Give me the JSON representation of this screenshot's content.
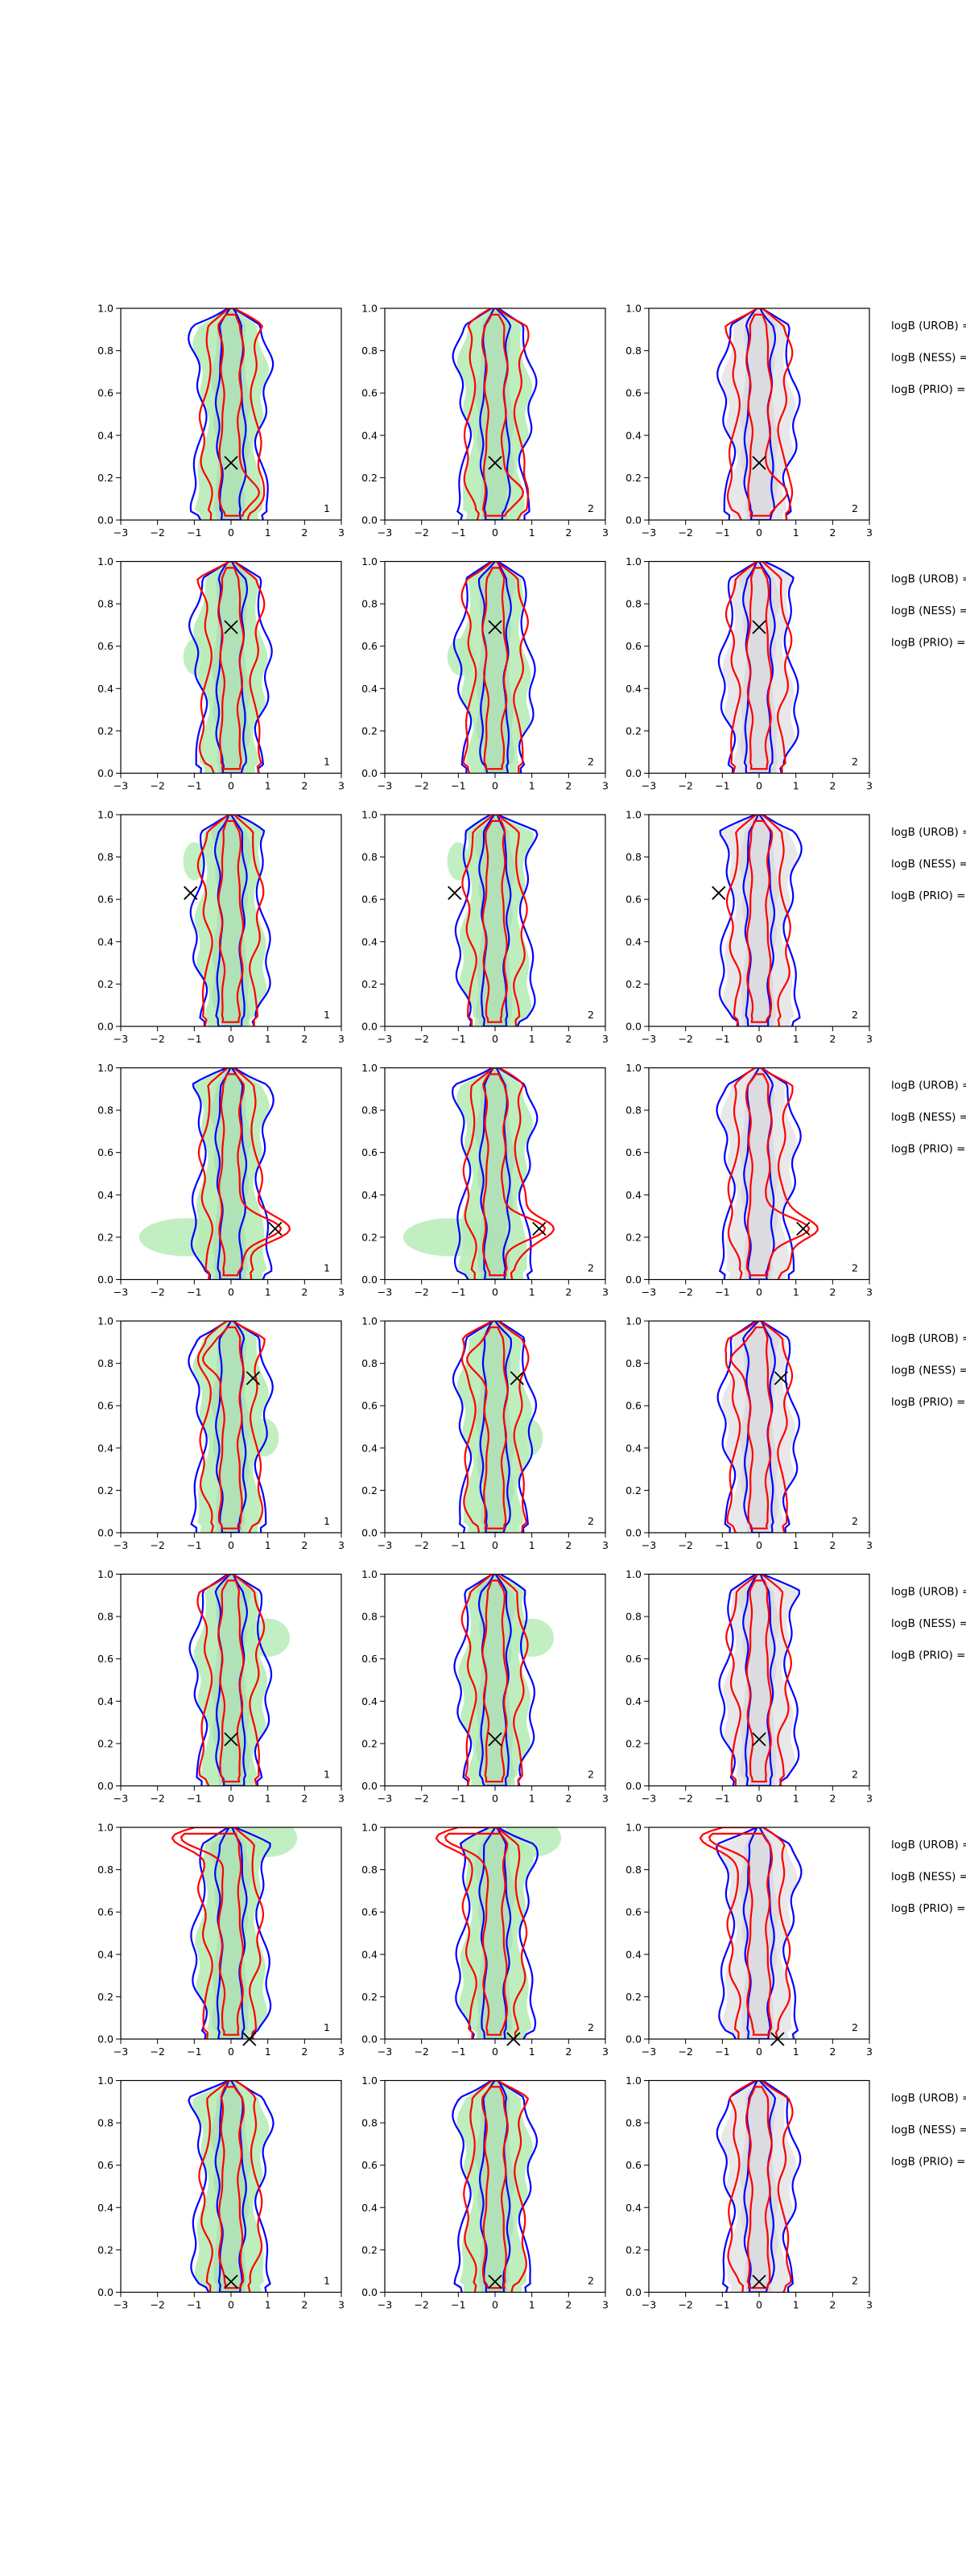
{
  "chart_data": {
    "type": "contour",
    "grid": false,
    "xlim": [
      -3,
      3
    ],
    "ylim": [
      0,
      1
    ],
    "x_ticks": [
      "−3",
      "−2",
      "−1",
      "0",
      "1",
      "2",
      "3"
    ],
    "y_ticks": [
      "0.0",
      "0.2",
      "0.4",
      "0.6",
      "0.8",
      "1.0"
    ],
    "series_colors": {
      "blue": "#0000ff",
      "red": "#ff0000",
      "green_fill": "#b7ecb7",
      "grey_fill": "#e6e6e9",
      "marker": "#000000"
    },
    "column_fill": [
      "green",
      "green",
      "grey"
    ],
    "column_panel_labels": [
      "1",
      "2",
      "2"
    ],
    "side_labels": [
      "logB (UROB) =",
      "logB (NESS) =",
      "logB (PRIO) ="
    ],
    "rows": [
      {
        "marker": [
          0.0,
          0.27
        ],
        "red_bump": {
          "x": 0.9,
          "y": 0.13,
          "w": 0.9
        },
        "blue_bump": {
          "x": 1.0,
          "y": 0.15,
          "w": 1.0
        },
        "green_extra": null
      },
      {
        "marker": [
          0.0,
          0.69
        ],
        "red_bump": null,
        "blue_bump": null,
        "green_extra": {
          "x": -0.9,
          "y": 0.55,
          "w": 0.4
        }
      },
      {
        "marker": [
          -1.1,
          0.63
        ],
        "red_bump": null,
        "blue_bump": {
          "x": -0.8,
          "y": 0.65,
          "w": 0.5
        },
        "green_extra": {
          "x": -1.0,
          "y": 0.78,
          "w": 0.3
        }
      },
      {
        "marker": [
          1.2,
          0.24
        ],
        "red_bump": {
          "x": 1.6,
          "y": 0.24,
          "w": 1.4
        },
        "blue_bump": null,
        "green_extra": {
          "x": -1.2,
          "y": 0.2,
          "w": 1.3
        }
      },
      {
        "marker": [
          0.6,
          0.73
        ],
        "red_bump": {
          "x": -0.9,
          "y": 0.82,
          "w": 0.6
        },
        "blue_bump": null,
        "green_extra": {
          "x": 0.9,
          "y": 0.45,
          "w": 0.4
        }
      },
      {
        "marker": [
          0.0,
          0.22
        ],
        "red_bump": null,
        "blue_bump": null,
        "green_extra": {
          "x": 1.0,
          "y": 0.7,
          "w": 0.6
        }
      },
      {
        "marker": [
          0.5,
          0.0
        ],
        "red_bump": {
          "x": -1.6,
          "y": 0.95,
          "w": 1.0
        },
        "blue_bump": null,
        "green_extra": {
          "x": 1.0,
          "y": 0.95,
          "w": 0.8
        }
      },
      {
        "marker": [
          0.0,
          0.05
        ],
        "red_bump": null,
        "blue_bump": null,
        "green_extra": null
      }
    ]
  }
}
